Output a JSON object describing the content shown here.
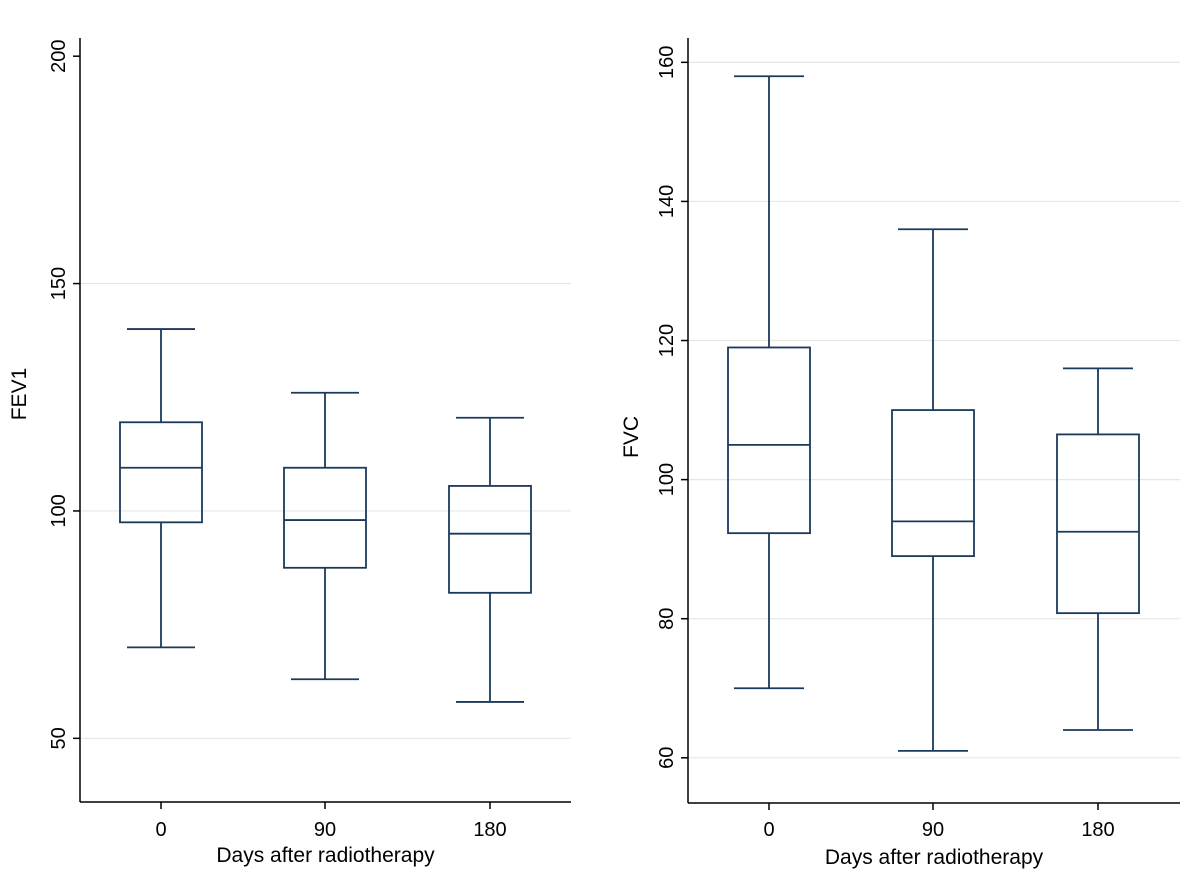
{
  "chart_data": [
    {
      "type": "box",
      "xlabel": "Days after radiotherapy",
      "ylabel": "FEV1",
      "categories": [
        "0",
        "90",
        "180"
      ],
      "ylim": [
        36,
        204
      ],
      "yticks": [
        "50",
        "100",
        "150",
        "200"
      ],
      "gridlines": [
        50,
        100,
        150
      ],
      "boxes": [
        {
          "category": "0",
          "whisker_low": 70,
          "q1": 97.5,
          "median": 109.5,
          "q3": 119.5,
          "whisker_high": 140
        },
        {
          "category": "90",
          "whisker_low": 63,
          "q1": 87.5,
          "median": 98,
          "q3": 109.5,
          "whisker_high": 126
        },
        {
          "category": "180",
          "whisker_low": 58,
          "q1": 82,
          "median": 95,
          "q3": 105.5,
          "whisker_high": 120.5
        }
      ],
      "color": "#1a3a5c",
      "grid": true
    },
    {
      "type": "box",
      "xlabel": "Days after radiotherapy",
      "ylabel": "FVC",
      "categories": [
        "0",
        "90",
        "180"
      ],
      "ylim": [
        53.5,
        163.5
      ],
      "yticks": [
        "60",
        "80",
        "100",
        "120",
        "140",
        "160"
      ],
      "gridlines": [
        60,
        80,
        100,
        120,
        140,
        160
      ],
      "boxes": [
        {
          "category": "0",
          "whisker_low": 70,
          "q1": 92.3,
          "median": 105,
          "q3": 119,
          "whisker_high": 158
        },
        {
          "category": "90",
          "whisker_low": 61,
          "q1": 89,
          "median": 94,
          "q3": 110,
          "whisker_high": 136
        },
        {
          "category": "180",
          "whisker_low": 64,
          "q1": 80.8,
          "median": 92.5,
          "q3": 106.5,
          "whisker_high": 116
        }
      ],
      "color": "#1a3a5c",
      "grid": true
    }
  ]
}
